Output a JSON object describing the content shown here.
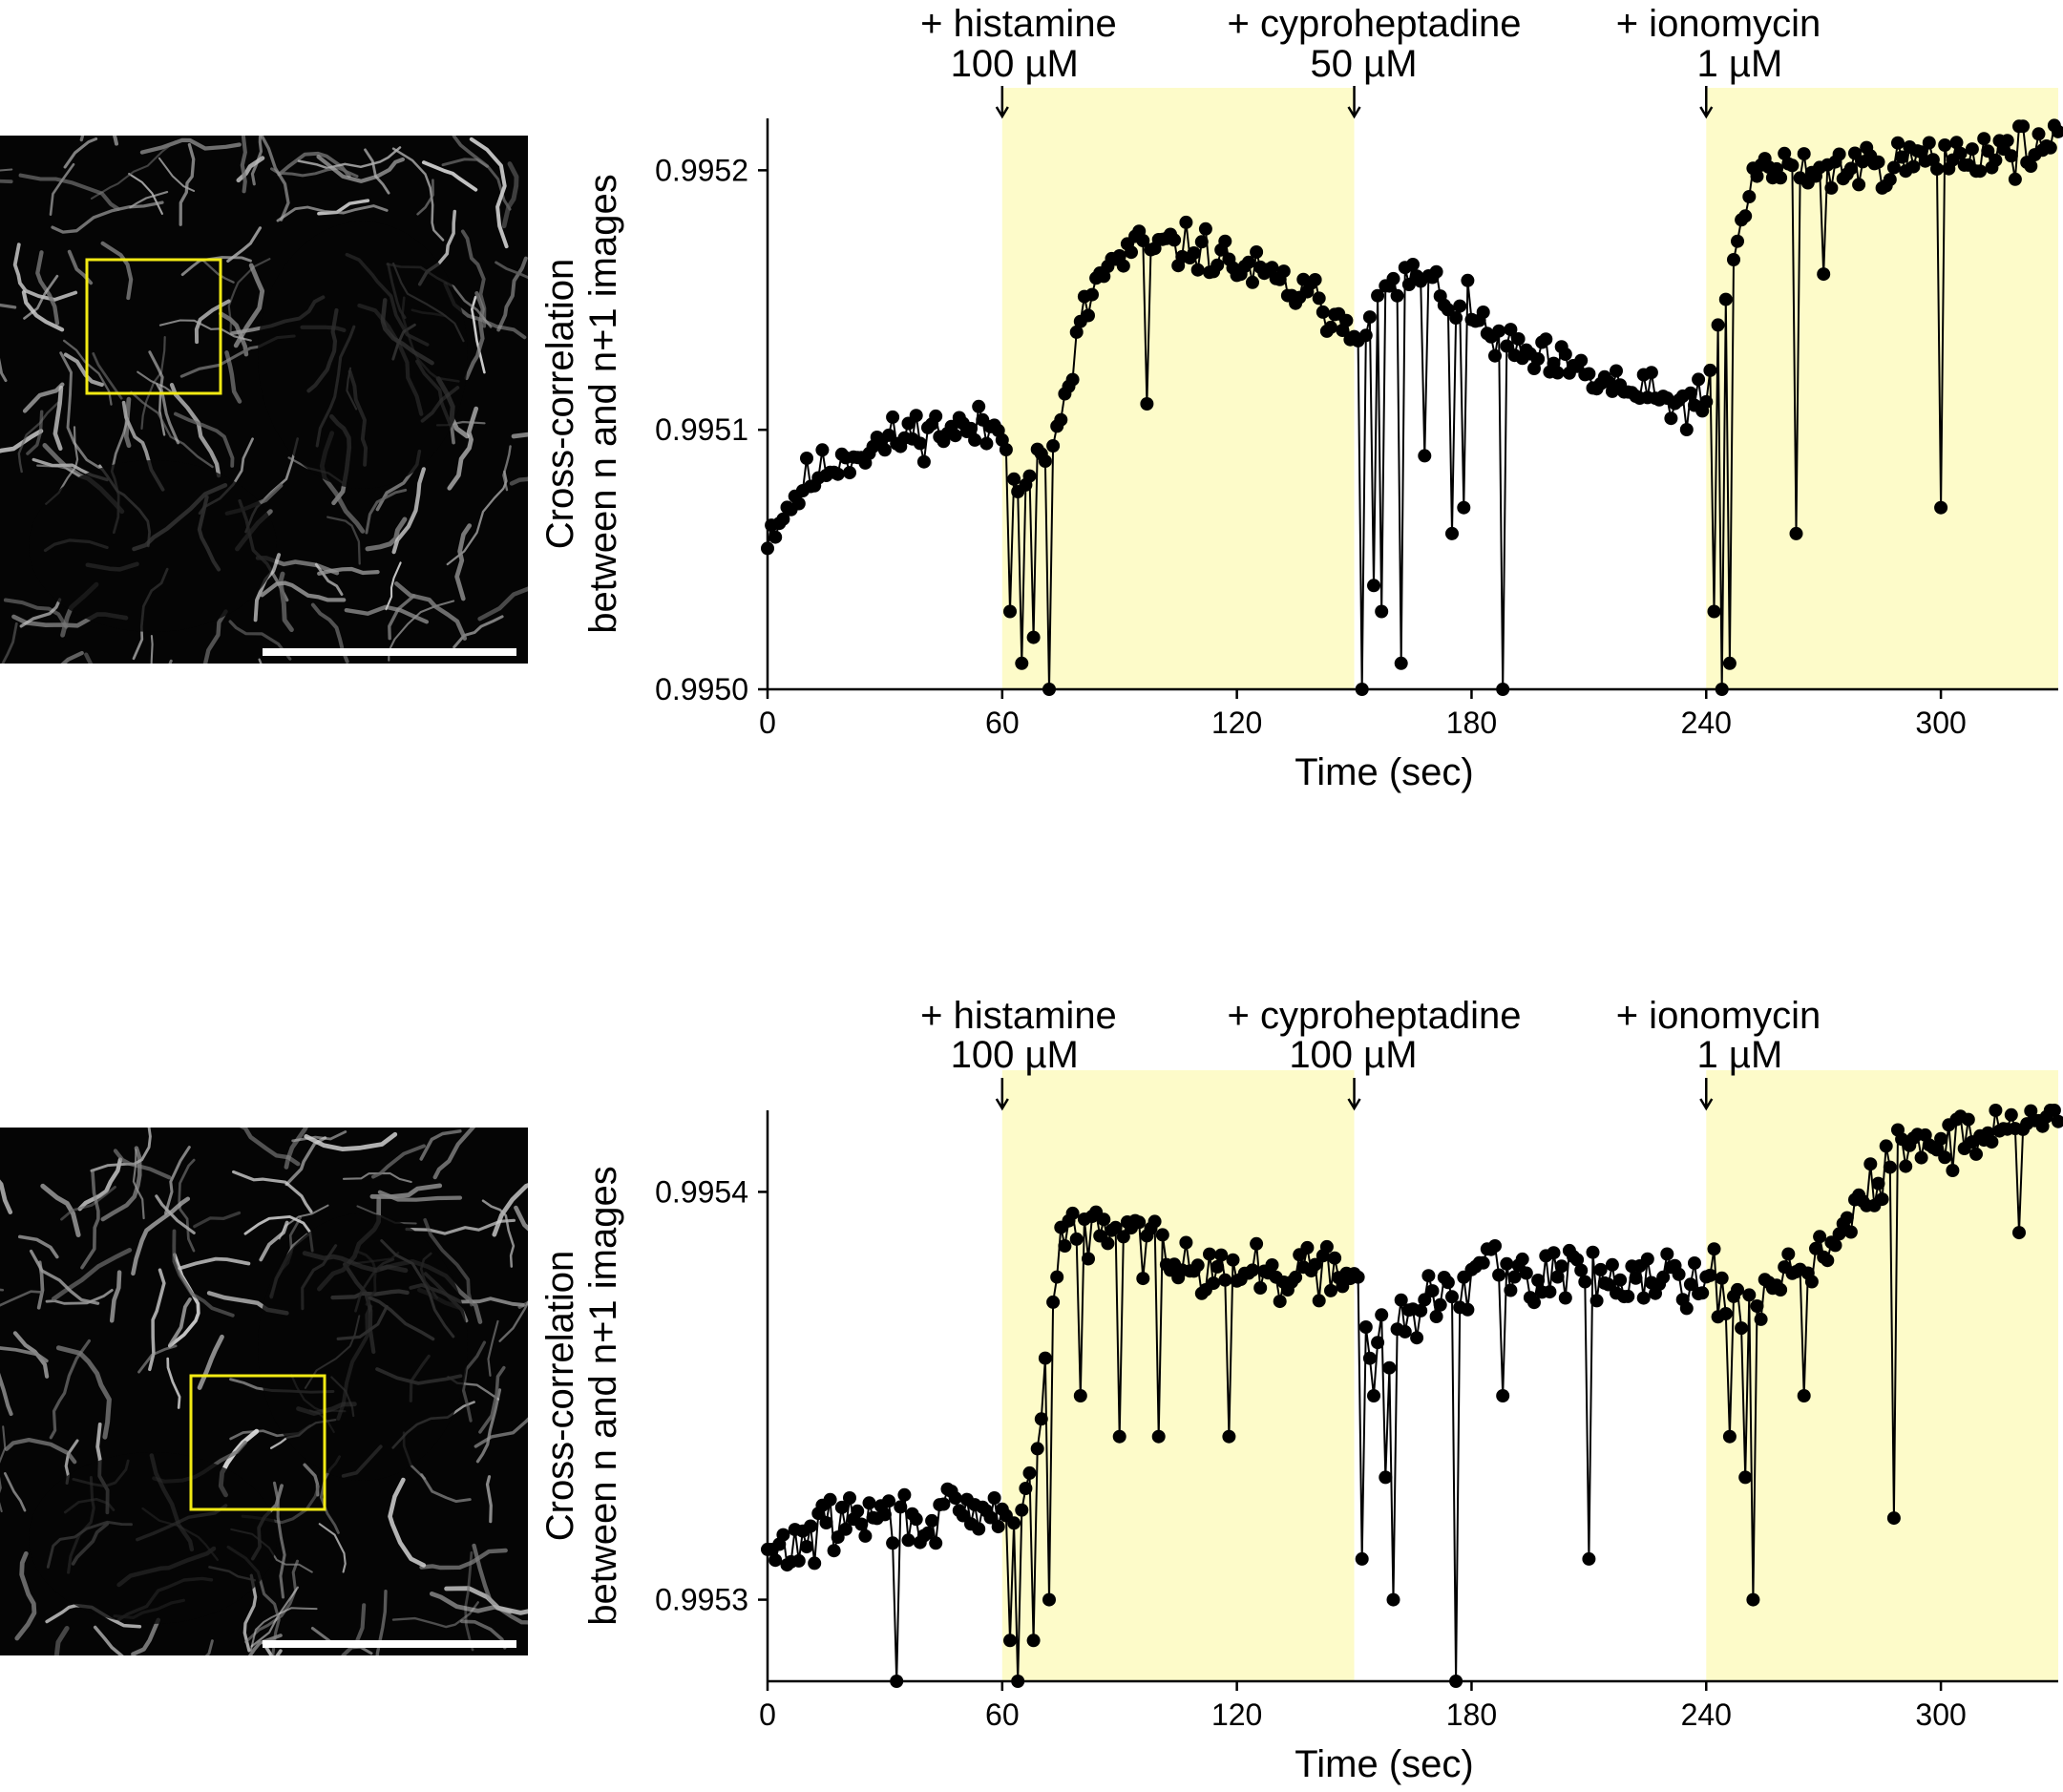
{
  "panels": [
    {
      "id": "top",
      "image": {
        "alt": "mitochondria fluorescence micrograph with yellow region of interest and scale bar"
      },
      "chart_data": {
        "type": "scatter",
        "xlabel": "Time (sec)",
        "ylabel_lines": [
          "Cross-correlation",
          "between n and n+1 images"
        ],
        "xlim": [
          0,
          330
        ],
        "ylim": [
          0.995,
          0.99522
        ],
        "x_ticks": [
          0,
          60,
          120,
          180,
          240,
          300
        ],
        "x_tick_labels": [
          "0",
          "60",
          "120",
          "180",
          "240",
          "300"
        ],
        "y_ticks": [
          0.995,
          0.9951,
          0.9952
        ],
        "y_tick_labels": [
          "0.9950",
          "0.9951",
          "0.9952"
        ],
        "shaded_intervals": [
          [
            60,
            150
          ],
          [
            240,
            330
          ]
        ],
        "shade_color": "#fdfbc9",
        "point_color": "#000000",
        "annotations": [
          {
            "x": 60,
            "line1": "+ histamine",
            "line2": "100 µM"
          },
          {
            "x": 150,
            "line1": "+ cyproheptadine",
            "line2": "50 µM"
          },
          {
            "x": 240,
            "line1": "+ ionomycin",
            "line2": "1 µM"
          }
        ],
        "series": [
          {
            "sample_interval_s": 1,
            "trend": [
              [
                0,
                0.99506
              ],
              [
                10,
                0.99508
              ],
              [
                20,
                0.99509
              ],
              [
                40,
                0.9951
              ],
              [
                60,
                0.9951
              ],
              [
                65,
                0.99508
              ],
              [
                75,
                0.9951
              ],
              [
                80,
                0.99514
              ],
              [
                85,
                0.99516
              ],
              [
                95,
                0.99517
              ],
              [
                110,
                0.99517
              ],
              [
                140,
                0.99515
              ],
              [
                150,
                0.99514
              ],
              [
                165,
                0.99516
              ],
              [
                175,
                0.99515
              ],
              [
                190,
                0.99513
              ],
              [
                210,
                0.99512
              ],
              [
                230,
                0.99511
              ],
              [
                240,
                0.99511
              ],
              [
                245,
                0.99515
              ],
              [
                252,
                0.9952
              ],
              [
                270,
                0.9952
              ],
              [
                330,
                0.99521
              ]
            ],
            "noise_amplitude": 4.5e-06,
            "dips": [
              [
                62,
                0.99503
              ],
              [
                65,
                0.99501
              ],
              [
                68,
                0.99502
              ],
              [
                72,
                0.995
              ],
              [
                97,
                0.99511
              ],
              [
                152,
                0.995
              ],
              [
                155,
                0.99504
              ],
              [
                157,
                0.99503
              ],
              [
                162,
                0.99501
              ],
              [
                168,
                0.99509
              ],
              [
                175,
                0.99506
              ],
              [
                178,
                0.99507
              ],
              [
                188,
                0.995
              ],
              [
                242,
                0.99503
              ],
              [
                244,
                0.995
              ],
              [
                246,
                0.99501
              ],
              [
                263,
                0.99506
              ],
              [
                270,
                0.99516
              ],
              [
                300,
                0.99507
              ]
            ]
          }
        ]
      }
    },
    {
      "id": "bottom",
      "image": {
        "alt": "mitochondria fluorescence micrograph with yellow region of interest and scale bar"
      },
      "chart_data": {
        "type": "scatter",
        "xlabel": "Time (sec)",
        "ylabel_lines": [
          "Cross-correlation",
          "between n and n+1 images"
        ],
        "xlim": [
          0,
          330
        ],
        "ylim": [
          0.99528,
          0.99542
        ],
        "x_ticks": [
          0,
          60,
          120,
          180,
          240,
          300
        ],
        "x_tick_labels": [
          "0",
          "60",
          "120",
          "180",
          "240",
          "300"
        ],
        "y_ticks": [
          0.9953,
          0.9954
        ],
        "y_tick_labels": [
          "0.9953",
          "0.9954"
        ],
        "shaded_intervals": [
          [
            60,
            150
          ],
          [
            240,
            330
          ]
        ],
        "shade_color": "#fdfbc9",
        "point_color": "#000000",
        "annotations": [
          {
            "x": 60,
            "line1": "+ histamine",
            "line2": "100 µM"
          },
          {
            "x": 150,
            "line1": "+ cyproheptadine",
            "line2": "100 µM"
          },
          {
            "x": 240,
            "line1": "+ ionomycin",
            "line2": "1 µM"
          }
        ],
        "series": [
          {
            "sample_interval_s": 1,
            "trend": [
              [
                0,
                0.99531
              ],
              [
                20,
                0.99532
              ],
              [
                40,
                0.99532
              ],
              [
                60,
                0.99532
              ],
              [
                68,
                0.99533
              ],
              [
                75,
                0.99539
              ],
              [
                90,
                0.99539
              ],
              [
                120,
                0.99538
              ],
              [
                150,
                0.99538
              ],
              [
                155,
                0.99536
              ],
              [
                165,
                0.99537
              ],
              [
                180,
                0.99538
              ],
              [
                240,
                0.99538
              ],
              [
                248,
                0.99537
              ],
              [
                260,
                0.99538
              ],
              [
                275,
                0.99539
              ],
              [
                290,
                0.99541
              ],
              [
                330,
                0.99542
              ]
            ],
            "noise_amplitude": 3.5e-06,
            "dips": [
              [
                33,
                0.99528
              ],
              [
                62,
                0.99529
              ],
              [
                64,
                0.99528
              ],
              [
                68,
                0.99529
              ],
              [
                72,
                0.9953
              ],
              [
                80,
                0.99535
              ],
              [
                90,
                0.99534
              ],
              [
                100,
                0.99534
              ],
              [
                118,
                0.99534
              ],
              [
                152,
                0.99531
              ],
              [
                155,
                0.99535
              ],
              [
                158,
                0.99533
              ],
              [
                160,
                0.9953
              ],
              [
                176,
                0.99528
              ],
              [
                188,
                0.99535
              ],
              [
                210,
                0.99531
              ],
              [
                246,
                0.99534
              ],
              [
                250,
                0.99533
              ],
              [
                252,
                0.9953
              ],
              [
                265,
                0.99535
              ],
              [
                288,
                0.99532
              ],
              [
                320,
                0.99539
              ]
            ]
          }
        ]
      }
    }
  ]
}
